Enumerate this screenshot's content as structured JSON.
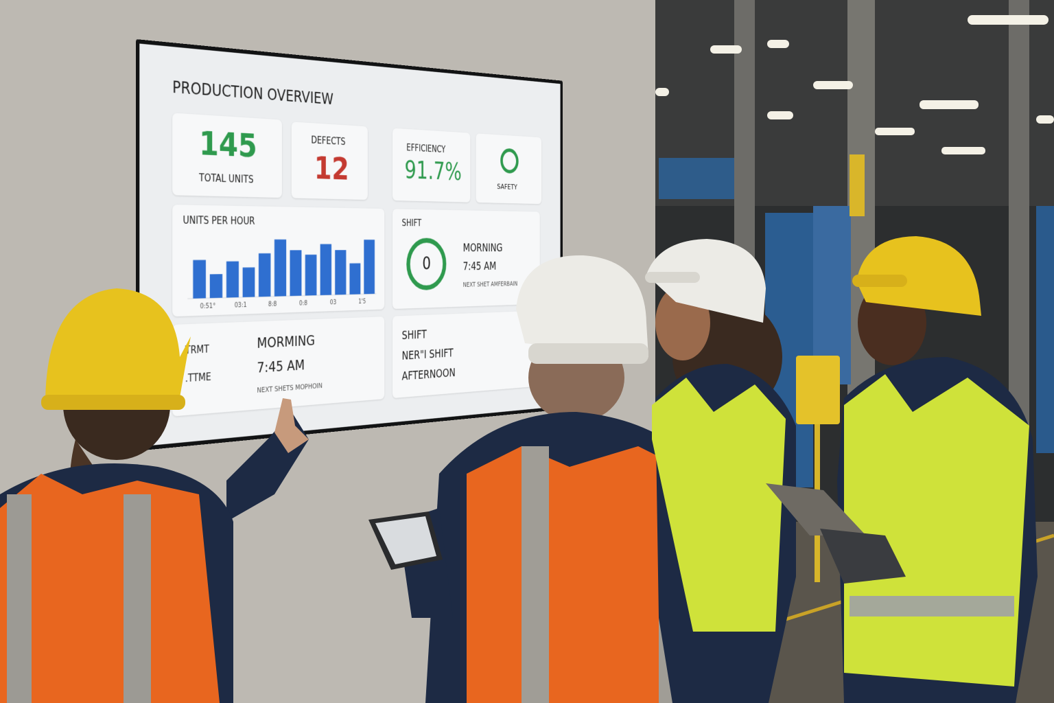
{
  "screen": {
    "title": "PRODUCTION OVERVIEW",
    "kpis": [
      {
        "value": "145",
        "label": "TOTAL UNITS"
      },
      {
        "label": "DEFECTS",
        "value": "12"
      },
      {
        "label": "EFFICIENCY",
        "value": "91.7%"
      },
      {
        "label": "SAFETY"
      }
    ],
    "units_per_hour": {
      "title": "UNITS PER HOUR",
      "x_labels": [
        "0:51°",
        "03:1",
        "8:8",
        "0:8",
        "03",
        "1'5"
      ],
      "values": [
        48,
        30,
        46,
        38,
        56,
        74,
        60,
        54,
        68,
        60,
        42,
        74
      ]
    },
    "shift_panel": {
      "title": "SHIFT",
      "gauge": "0",
      "shift": "MORNING",
      "time": "7:45 AM",
      "next": "NEXT SHET AMFERBAIN"
    },
    "detail_panel": {
      "labels": [
        "TRMT",
        ".TTME"
      ],
      "shift": "MORMING",
      "time": "7:45 AM",
      "next": "NEXT SHETS MOPHOIN"
    },
    "next_panel": {
      "lines": [
        "SHIFT",
        "NER\"I SHIFT",
        "AFTERNOON"
      ]
    }
  }
}
